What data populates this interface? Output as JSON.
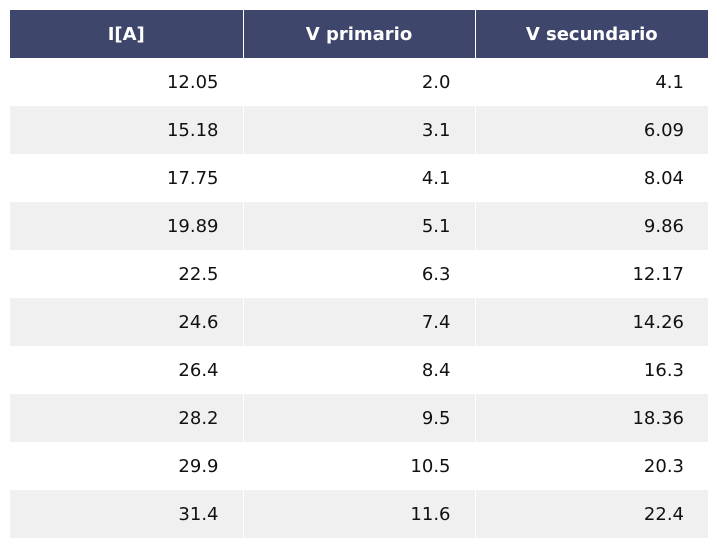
{
  "chart_data": {
    "type": "table",
    "columns": [
      "I[A]",
      "V primario",
      "V secundario"
    ],
    "rows": [
      [
        "12.05",
        "2.0",
        "4.1"
      ],
      [
        "15.18",
        "3.1",
        "6.09"
      ],
      [
        "17.75",
        "4.1",
        "8.04"
      ],
      [
        "19.89",
        "5.1",
        "9.86"
      ],
      [
        "22.5",
        "6.3",
        "12.17"
      ],
      [
        "24.6",
        "7.4",
        "14.26"
      ],
      [
        "26.4",
        "8.4",
        "16.3"
      ],
      [
        "28.2",
        "9.5",
        "18.36"
      ],
      [
        "29.9",
        "10.5",
        "20.3"
      ],
      [
        "31.4",
        "11.6",
        "22.4"
      ]
    ]
  },
  "colors": {
    "header_bg": "#3f466b",
    "header_text": "#ffffff",
    "row_alt_bg": "#f0f0f0",
    "row_bg": "#ffffff"
  }
}
